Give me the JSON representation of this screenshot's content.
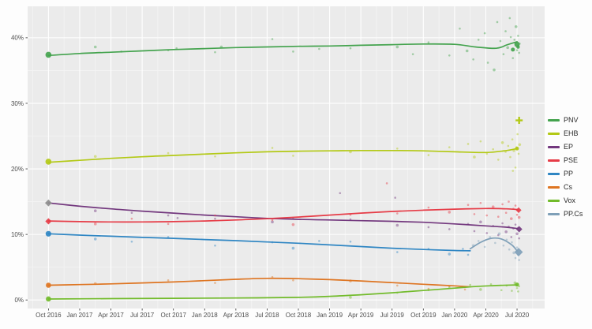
{
  "figure": {
    "background": "#fdfdfd",
    "panel_background": "#ebebeb",
    "grid_major_color": "#ffffff",
    "grid_minor_color": "#f4f4f4",
    "tick_label_color": "#4d4d4d",
    "tick_mark_color": "#333333"
  },
  "chart_data": {
    "type": "line",
    "description": "Opinion polling trends for Basque parliament parties, Oct 2016 - Jul 2020; smoothed trend lines with individual poll scatter points; election result markers at both ends",
    "x_unit": "months_since_oct_2016",
    "xlim": [
      -2,
      47.65
    ],
    "ylim": [
      -1.3,
      44.8
    ],
    "grid": true,
    "legend_position": "right",
    "x_ticks": [
      {
        "m": 0,
        "label": "Oct 2016"
      },
      {
        "m": 3,
        "label": "Jan 2017"
      },
      {
        "m": 6,
        "label": "Apr 2017"
      },
      {
        "m": 9,
        "label": "Jul 2017"
      },
      {
        "m": 12,
        "label": "Oct 2017"
      },
      {
        "m": 15,
        "label": "Jan 2018"
      },
      {
        "m": 18,
        "label": "Apr 2018"
      },
      {
        "m": 21,
        "label": "Jul 2018"
      },
      {
        "m": 24,
        "label": "Oct 2018"
      },
      {
        "m": 27,
        "label": "Jan 2019"
      },
      {
        "m": 30,
        "label": "Apr 2019"
      },
      {
        "m": 33,
        "label": "Jul 2019"
      },
      {
        "m": 36,
        "label": "Oct 2019"
      },
      {
        "m": 39,
        "label": "Jan 2020"
      },
      {
        "m": 42,
        "label": "Apr 2020"
      },
      {
        "m": 45,
        "label": "Jul 2020"
      }
    ],
    "y_ticks": [
      {
        "v": 0,
        "label": "0%"
      },
      {
        "v": 10,
        "label": "10%"
      },
      {
        "v": 20,
        "label": "20%"
      },
      {
        "v": 30,
        "label": "30%"
      },
      {
        "v": 40,
        "label": "40%"
      }
    ],
    "series": [
      {
        "name": "PNV",
        "color": "#44A34E",
        "trend": {
          "x": [
            0,
            3,
            6,
            9,
            12,
            15,
            18,
            21,
            24,
            27,
            30,
            33,
            36,
            39,
            41,
            43,
            44,
            45
          ],
          "y": [
            37.3,
            37.6,
            37.8,
            38.0,
            38.2,
            38.35,
            38.5,
            38.6,
            38.7,
            38.75,
            38.85,
            38.95,
            39.05,
            39.0,
            38.6,
            38.4,
            38.9,
            39.4
          ]
        },
        "scatter": [
          [
            4.5,
            38.6
          ],
          [
            7,
            37.9
          ],
          [
            11.5,
            38.1
          ],
          [
            12.3,
            38.4
          ],
          [
            16,
            37.8
          ],
          [
            16.6,
            38.6
          ],
          [
            21.5,
            39.8
          ],
          [
            23.5,
            37.9
          ],
          [
            26,
            38.3
          ],
          [
            29,
            38.4
          ],
          [
            33.5,
            38.6
          ],
          [
            35,
            37.5
          ],
          [
            36.5,
            39.3
          ],
          [
            38.5,
            37.3
          ],
          [
            39.5,
            41.4
          ],
          [
            40.2,
            38.0
          ],
          [
            40.8,
            36.7
          ],
          [
            41.3,
            39.7
          ],
          [
            41.9,
            40.7
          ],
          [
            42.2,
            36.2
          ],
          [
            42.8,
            35.1
          ],
          [
            43.1,
            42.4
          ],
          [
            43.4,
            39.5
          ],
          [
            43.7,
            37.5
          ],
          [
            43.9,
            41.0
          ],
          [
            44.1,
            38.5
          ],
          [
            44.3,
            43.0
          ],
          [
            44.4,
            40.1
          ],
          [
            44.6,
            36.9
          ],
          [
            44.75,
            39.7
          ],
          [
            44.9,
            41.7
          ],
          [
            45,
            38.1
          ],
          [
            45.1,
            40.3
          ],
          [
            45.2,
            37.7
          ],
          [
            45.25,
            39.1
          ]
        ],
        "markers": [
          {
            "m": 0,
            "v": 37.4,
            "shape": "circle",
            "size": 3.8
          },
          {
            "m": 45,
            "v": 39.0,
            "shape": "circle",
            "size": 3.4
          },
          {
            "m": 44.6,
            "v": 38.2,
            "shape": "circle",
            "size": 2.5
          },
          {
            "m": 45.1,
            "v": 38.6,
            "shape": "circle",
            "size": 2.2
          }
        ]
      },
      {
        "name": "EHB",
        "color": "#B3C916",
        "trend": {
          "x": [
            0,
            3,
            6,
            9,
            12,
            15,
            18,
            21,
            24,
            27,
            30,
            33,
            36,
            39,
            42,
            44,
            45
          ],
          "y": [
            21.0,
            21.3,
            21.6,
            21.85,
            22.05,
            22.25,
            22.45,
            22.6,
            22.7,
            22.75,
            22.8,
            22.8,
            22.75,
            22.6,
            22.5,
            22.8,
            23.1
          ]
        },
        "scatter": [
          [
            4.5,
            21.9
          ],
          [
            11.5,
            22.4
          ],
          [
            16,
            21.9
          ],
          [
            21.5,
            23.2
          ],
          [
            23.5,
            22.0
          ],
          [
            29,
            22.6
          ],
          [
            33.5,
            23.1
          ],
          [
            36.5,
            22.1
          ],
          [
            38.5,
            23.3
          ],
          [
            40.3,
            23.8
          ],
          [
            40.9,
            21.8
          ],
          [
            41.5,
            24.2
          ],
          [
            42.1,
            22.3
          ],
          [
            42.7,
            23.0
          ],
          [
            43.2,
            21.4
          ],
          [
            43.6,
            24.0
          ],
          [
            43.9,
            22.6
          ],
          [
            44.15,
            23.5
          ],
          [
            44.35,
            21.8
          ],
          [
            44.55,
            24.5
          ],
          [
            44.7,
            22.8
          ],
          [
            44.85,
            20.2
          ],
          [
            44.95,
            23.3
          ],
          [
            45.05,
            25.3
          ],
          [
            45.15,
            22.3
          ],
          [
            45.25,
            23.7
          ],
          [
            44.6,
            19.7
          ]
        ],
        "markers": [
          {
            "m": 0,
            "v": 21.1,
            "shape": "circle",
            "size": 3.8
          },
          {
            "m": 45.2,
            "v": 27.4,
            "shape": "cross",
            "size": 4.5
          },
          {
            "m": 45,
            "v": 23.1,
            "shape": "circle",
            "size": 2.4
          }
        ]
      },
      {
        "name": "EP",
        "color": "#73387E",
        "trend": {
          "x": [
            0,
            3,
            6,
            9,
            12,
            15,
            18,
            21,
            24,
            27,
            30,
            33,
            36,
            39,
            42,
            44,
            45
          ],
          "y": [
            14.8,
            14.3,
            13.9,
            13.55,
            13.25,
            12.95,
            12.7,
            12.45,
            12.3,
            12.2,
            12.1,
            12.0,
            11.85,
            11.6,
            11.3,
            11.1,
            10.9
          ]
        },
        "scatter": [
          [
            4.5,
            13.6
          ],
          [
            8,
            13.3
          ],
          [
            11.5,
            12.9
          ],
          [
            12.4,
            12.5
          ],
          [
            16,
            12.4
          ],
          [
            21.5,
            11.9
          ],
          [
            23.5,
            12.4
          ],
          [
            28,
            16.3
          ],
          [
            29,
            12.3
          ],
          [
            33.3,
            15.6
          ],
          [
            33.5,
            11.4
          ],
          [
            36.5,
            11.1
          ],
          [
            38.5,
            10.8
          ],
          [
            40.3,
            11.6
          ],
          [
            40.9,
            10.5
          ],
          [
            41.5,
            11.9
          ],
          [
            42.1,
            10.2
          ],
          [
            42.7,
            11.3
          ],
          [
            43.2,
            9.9
          ],
          [
            43.6,
            11.7
          ],
          [
            43.95,
            10.4
          ],
          [
            44.2,
            11.2
          ],
          [
            44.45,
            9.6
          ],
          [
            44.65,
            10.9
          ],
          [
            44.85,
            11.5
          ],
          [
            45,
            10.1
          ],
          [
            45.1,
            11.0
          ],
          [
            45.2,
            9.4
          ]
        ],
        "markers": [
          {
            "m": 0,
            "v": 14.8,
            "shape": "diamond",
            "size": 4.4,
            "color": "#8D8D8D"
          },
          {
            "m": 45.2,
            "v": 10.8,
            "shape": "diamond",
            "size": 4.0
          }
        ]
      },
      {
        "name": "PSE",
        "color": "#E63C47",
        "trend": {
          "x": [
            0,
            3,
            6,
            9,
            12,
            15,
            18,
            21,
            24,
            27,
            30,
            33,
            36,
            39,
            42,
            44,
            45
          ],
          "y": [
            12.05,
            11.95,
            11.9,
            11.9,
            11.95,
            12.05,
            12.2,
            12.4,
            12.65,
            12.95,
            13.25,
            13.5,
            13.7,
            13.85,
            13.95,
            13.9,
            13.8
          ]
        },
        "scatter": [
          [
            4.5,
            11.6
          ],
          [
            8,
            12.4
          ],
          [
            11.5,
            11.6
          ],
          [
            16,
            12.9
          ],
          [
            21.5,
            12.2
          ],
          [
            23.5,
            11.5
          ],
          [
            29,
            13.0
          ],
          [
            32.5,
            17.8
          ],
          [
            33.5,
            13.2
          ],
          [
            36.5,
            14.1
          ],
          [
            38.5,
            13.4
          ],
          [
            40.3,
            14.5
          ],
          [
            40.9,
            13.1
          ],
          [
            41.5,
            14.8
          ],
          [
            42.1,
            12.9
          ],
          [
            42.7,
            14.2
          ],
          [
            43.2,
            12.7
          ],
          [
            43.6,
            14.6
          ],
          [
            43.95,
            13.3
          ],
          [
            44.2,
            15.0
          ],
          [
            44.45,
            12.4
          ],
          [
            44.65,
            13.9
          ],
          [
            44.85,
            14.4
          ],
          [
            45,
            13.0
          ],
          [
            45.1,
            13.8
          ],
          [
            45.2,
            12.6
          ]
        ],
        "markers": [
          {
            "m": 0,
            "v": 12.0,
            "shape": "diamond",
            "size": 4.0
          },
          {
            "m": 45.15,
            "v": 13.7,
            "shape": "diamond",
            "size": 3.6
          }
        ]
      },
      {
        "name": "PP",
        "color": "#2F86C3",
        "trend": {
          "x": [
            0,
            3,
            6,
            9,
            12,
            15,
            18,
            21,
            24,
            27,
            30,
            33,
            36,
            39,
            40.5
          ],
          "y": [
            10.1,
            9.9,
            9.72,
            9.55,
            9.4,
            9.22,
            9.05,
            8.85,
            8.65,
            8.4,
            8.15,
            7.9,
            7.7,
            7.55,
            7.5
          ]
        },
        "scatter": [
          [
            4.5,
            9.3
          ],
          [
            8,
            8.9
          ],
          [
            11.5,
            9.6
          ],
          [
            16,
            8.3
          ],
          [
            21.5,
            8.8
          ],
          [
            23.5,
            7.9
          ],
          [
            26,
            9.0
          ],
          [
            29,
            8.9
          ],
          [
            33.5,
            7.3
          ],
          [
            36.5,
            7.8
          ],
          [
            38.5,
            7.0
          ],
          [
            39.8,
            7.8
          ],
          [
            40.3,
            6.9
          ]
        ],
        "markers": [
          {
            "m": 0,
            "v": 10.1,
            "shape": "circle",
            "size": 3.6
          }
        ]
      },
      {
        "name": "Cs",
        "color": "#DE7522",
        "trend": {
          "x": [
            0,
            3,
            6,
            9,
            12,
            15,
            18,
            21,
            24,
            27,
            30,
            33,
            36,
            39,
            40.5
          ],
          "y": [
            2.25,
            2.35,
            2.45,
            2.6,
            2.75,
            2.95,
            3.15,
            3.3,
            3.25,
            3.1,
            2.9,
            2.65,
            2.4,
            2.15,
            2.0
          ]
        },
        "scatter": [
          [
            4.5,
            2.5
          ],
          [
            11.5,
            3.0
          ],
          [
            16,
            2.6
          ],
          [
            21.5,
            3.5
          ],
          [
            23.5,
            3.0
          ],
          [
            29,
            2.9
          ],
          [
            33.5,
            2.2
          ],
          [
            36.5,
            1.7
          ],
          [
            38.5,
            2.1
          ],
          [
            40,
            1.6
          ]
        ],
        "markers": [
          {
            "m": 0,
            "v": 2.25,
            "shape": "circle",
            "size": 3.3
          }
        ]
      },
      {
        "name": "Vox",
        "color": "#72BB2B",
        "trend": {
          "x": [
            0,
            6,
            12,
            18,
            24,
            27,
            30,
            33,
            36,
            39,
            41,
            43,
            45
          ],
          "y": [
            0.15,
            0.2,
            0.25,
            0.3,
            0.4,
            0.55,
            0.8,
            1.1,
            1.45,
            1.8,
            2.05,
            2.2,
            2.3
          ]
        },
        "scatter": [
          [
            29,
            0.4
          ],
          [
            33.5,
            1.1
          ],
          [
            36.5,
            1.5
          ],
          [
            38.5,
            1.9
          ],
          [
            40.5,
            2.3
          ],
          [
            41.5,
            1.6
          ],
          [
            42.5,
            2.4
          ],
          [
            43.5,
            1.5
          ],
          [
            44,
            2.2
          ],
          [
            44.5,
            1.4
          ],
          [
            44.8,
            2.6
          ],
          [
            45,
            1.8
          ],
          [
            45.1,
            1.3
          ],
          [
            45.2,
            2.1
          ]
        ],
        "markers": [
          {
            "m": 0,
            "v": 0.15,
            "shape": "circle",
            "size": 3.3
          },
          {
            "m": 45,
            "v": 2.35,
            "shape": "circle",
            "size": 2.6
          }
        ]
      },
      {
        "name": "PP.Cs",
        "color": "#7FA0B8",
        "trend": {
          "x": [
            40.5,
            41.5,
            42.5,
            43.5,
            44.5,
            45
          ],
          "y": [
            7.8,
            8.8,
            9.4,
            9.3,
            8.4,
            7.5
          ]
        },
        "scatter": [
          [
            40.8,
            8.3
          ],
          [
            41.3,
            9.0
          ],
          [
            41.9,
            8.1
          ],
          [
            42.4,
            9.6
          ],
          [
            42.9,
            8.7
          ],
          [
            43.3,
            10.1
          ],
          [
            43.7,
            8.3
          ],
          [
            44,
            9.2
          ],
          [
            44.25,
            7.7
          ],
          [
            44.5,
            8.8
          ],
          [
            44.7,
            7.2
          ],
          [
            44.85,
            6.4
          ],
          [
            45,
            8.0
          ],
          [
            45.1,
            6.9
          ],
          [
            45.2,
            6.1
          ]
        ],
        "markers": [
          {
            "m": 45.15,
            "v": 7.3,
            "shape": "diamond",
            "size": 5.4
          }
        ]
      }
    ]
  }
}
